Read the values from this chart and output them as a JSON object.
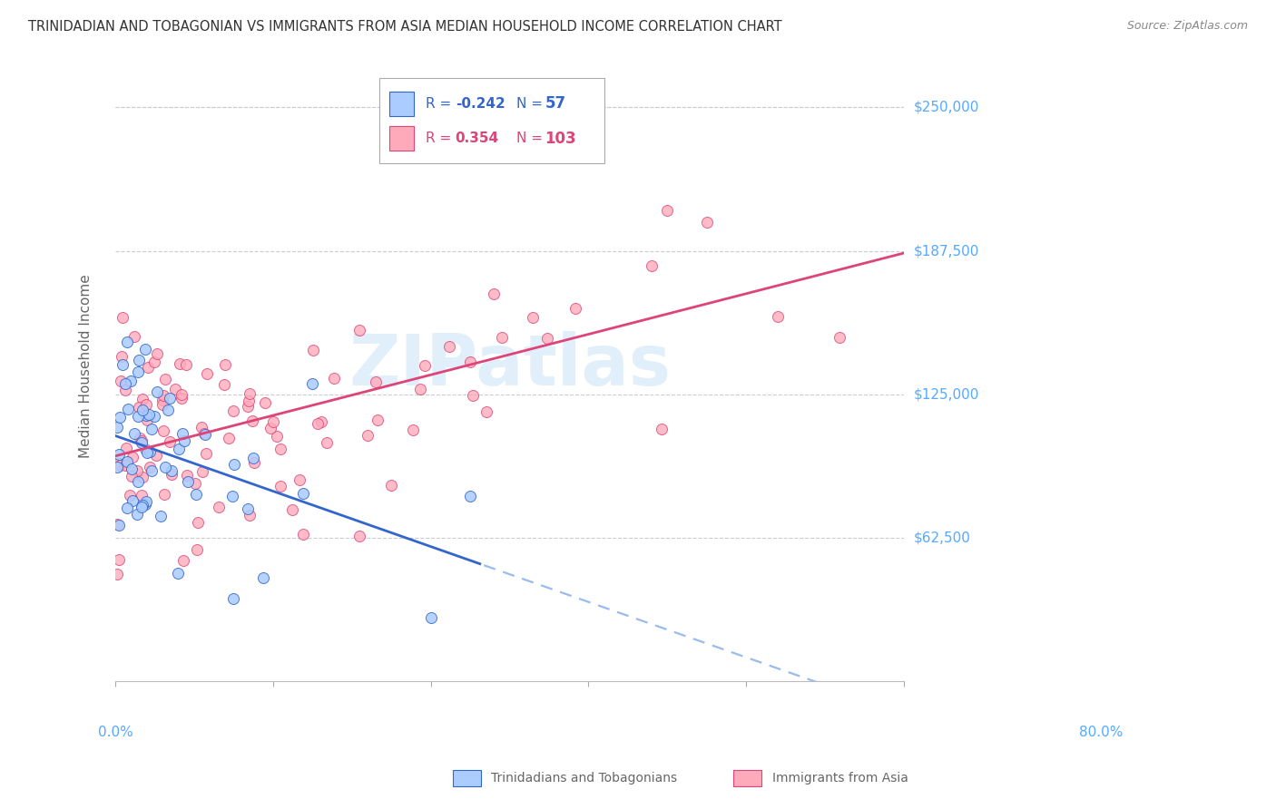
{
  "title": "TRINIDADIAN AND TOBAGONIAN VS IMMIGRANTS FROM ASIA MEDIAN HOUSEHOLD INCOME CORRELATION CHART",
  "source": "Source: ZipAtlas.com",
  "ylabel": "Median Household Income",
  "yticks": [
    62500,
    125000,
    187500,
    250000
  ],
  "ytick_labels": [
    "$62,500",
    "$125,000",
    "$187,500",
    "$250,000"
  ],
  "ylim": [
    0,
    275000
  ],
  "xlim": [
    0.0,
    0.8
  ],
  "blue_N": 57,
  "pink_N": 103,
  "blue_label": "Trinidadians and Tobagonians",
  "pink_label": "Immigrants from Asia",
  "watermark": "ZIPatlas",
  "background_color": "#ffffff",
  "blue_scatter_color": "#aaccff",
  "pink_scatter_color": "#ffaabb",
  "blue_line_color": "#3366cc",
  "pink_line_color": "#dd4477",
  "blue_dashed_color": "#99bbee",
  "grid_color": "#cccccc",
  "title_color": "#333333",
  "axis_label_color": "#55aaff",
  "ytick_color": "#55aaff"
}
